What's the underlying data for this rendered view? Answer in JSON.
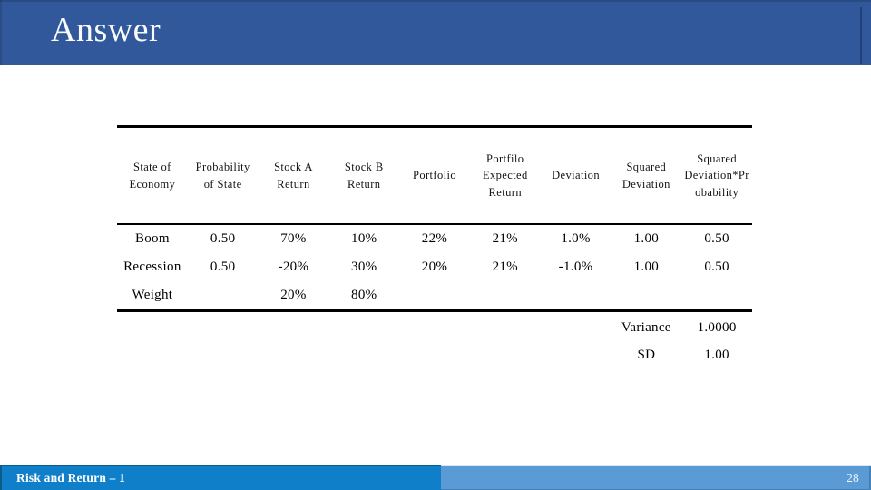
{
  "slide": {
    "title": "Answer",
    "footer": {
      "left_text": "Risk and Return – 1",
      "page_number": "28"
    }
  },
  "colors": {
    "title_bar": "#31589A",
    "footer_left_bar": "#0F7FC9",
    "footer_right_bar": "#5B9BD5",
    "table_rule": "#000000",
    "title_text": "#F8FAFC"
  },
  "table": {
    "columns": [
      "State of\nEconomy",
      "Probability\nof State",
      "Stock A\nReturn",
      "Stock B\nReturn",
      "Portfolio",
      "Portfilo\nExpected\nReturn",
      "Deviation",
      "Squared\nDeviation",
      "Squared\nDeviation*Pr\nobability"
    ],
    "rows": [
      [
        "Boom",
        "0.50",
        "70%",
        "10%",
        "22%",
        "21%",
        "1.0%",
        "1.00",
        "0.50"
      ],
      [
        "Recession",
        "0.50",
        "-20%",
        "30%",
        "20%",
        "21%",
        "-1.0%",
        "1.00",
        "0.50"
      ],
      [
        "Weight",
        "",
        "20%",
        "80%",
        "",
        "",
        "",
        "",
        ""
      ]
    ],
    "summary": [
      {
        "label": "Variance",
        "value": "1.0000"
      },
      {
        "label": "SD",
        "value": "1.00"
      }
    ]
  }
}
